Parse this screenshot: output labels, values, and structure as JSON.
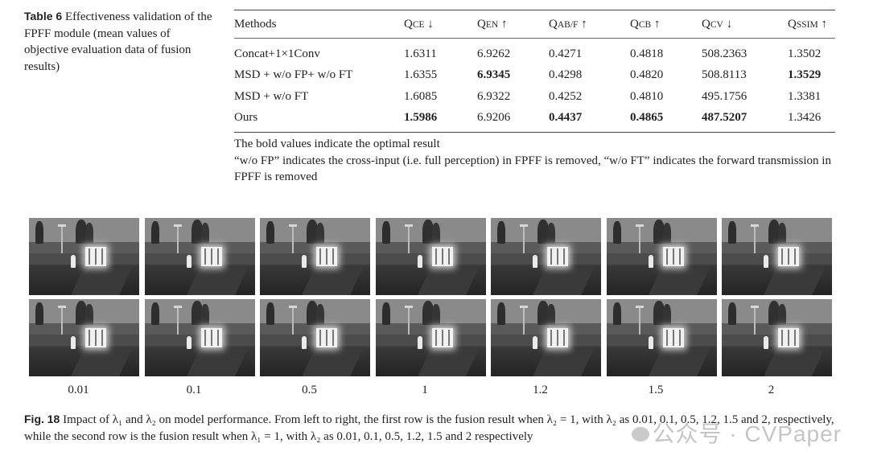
{
  "table": {
    "label": "Table 6",
    "caption": "Effectiveness validation of the FPFF module (mean values of objective evaluation data of fusion results)",
    "headers": [
      {
        "main": "Methods",
        "sub": "",
        "arrow": ""
      },
      {
        "main": "Q",
        "sub": "CE",
        "arrow": "↓"
      },
      {
        "main": "Q",
        "sub": "EN",
        "arrow": "↑"
      },
      {
        "main": "Q",
        "sub": "AB/F",
        "arrow": "↑"
      },
      {
        "main": "Q",
        "sub": "CB",
        "arrow": "↑"
      },
      {
        "main": "Q",
        "sub": "CV",
        "arrow": "↓"
      },
      {
        "main": "Q",
        "sub": "SSIM",
        "arrow": "↑"
      }
    ],
    "rows": [
      {
        "method": "Concat+1×1Conv",
        "values": [
          "1.6311",
          "6.9262",
          "0.4271",
          "0.4818",
          "508.2363",
          "1.3502"
        ],
        "bold": [
          false,
          false,
          false,
          false,
          false,
          false
        ]
      },
      {
        "method": "MSD + w/o FP+ w/o FT",
        "values": [
          "1.6355",
          "6.9345",
          "0.4298",
          "0.4820",
          "508.8113",
          "1.3529"
        ],
        "bold": [
          false,
          true,
          false,
          false,
          false,
          true
        ]
      },
      {
        "method": "MSD + w/o FT",
        "values": [
          "1.6085",
          "6.9322",
          "0.4252",
          "0.4810",
          "495.1756",
          "1.3381"
        ],
        "bold": [
          false,
          false,
          false,
          false,
          false,
          false
        ]
      },
      {
        "method": "Ours",
        "values": [
          "1.5986",
          "6.9206",
          "0.4437",
          "0.4865",
          "487.5207",
          "1.3426"
        ],
        "bold": [
          true,
          false,
          true,
          true,
          true,
          false
        ]
      }
    ],
    "note1": "The bold values indicate the optimal result",
    "note2": "“w/o FP” indicates the cross-input (i.e. full perception) in FPFF is removed, “w/o FT” indicates the forward transmission in FPFF is removed"
  },
  "figure": {
    "lambda_labels": [
      "0.01",
      "0.1",
      "0.5",
      "1",
      "1.2",
      "1.5",
      "2"
    ],
    "label": "Fig. 18",
    "caption": "Impact of λ₁ and λ₂ on model performance. From left to right, the first row is the fusion result when λ₂ = 1, with λ₂ as 0.01, 0.1, 0.5, 1.2, 1.5 and 2, respectively, while the second row is the fusion result when λ₁ = 1, with λ₂ as 0.01, 0.1, 0.5, 1.2, 1.5 and 2 respectively"
  },
  "watermark": "公众号 · CVPaper"
}
